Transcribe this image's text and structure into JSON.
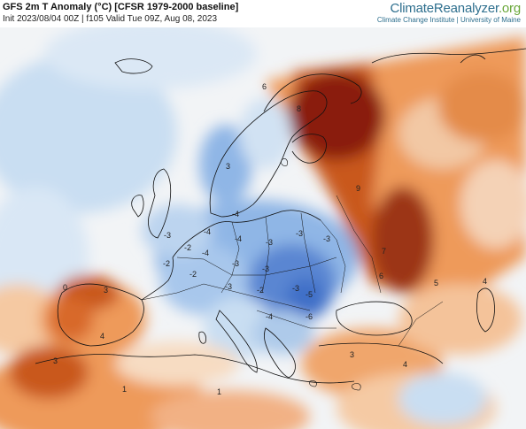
{
  "header": {
    "title": "GFS 2m T Anomaly (°C) [CFSR 1979-2000 baseline]",
    "subtitle": "Init 2023/08/04 00Z | f105 Valid Tue 09Z, Aug 08, 2023",
    "brand_name_main": "ClimateReanalyzer",
    "brand_name_tld": ".org",
    "brand_sub": "Climate Change Institute | University of Maine"
  },
  "colors": {
    "ocean_neutral": "#f2f4f6",
    "light_blue": "#c9def2",
    "mid_blue": "#8fb6e6",
    "deep_blue": "#3f70c8",
    "light_orange": "#f8d6b8",
    "orange": "#ee9a5a",
    "dark_orange": "#c9581e",
    "red_brown": "#8a1e0c",
    "border_line": "#111111"
  },
  "map": {
    "variable": "2m temperature anomaly",
    "region": "Europe",
    "contour_labels": [
      "6",
      "8",
      "9",
      "7",
      "3",
      "0",
      "4",
      "1",
      "3",
      "-4",
      "-4",
      "-3",
      "-4",
      "-3",
      "-3",
      "-3",
      "-4",
      "-2",
      "-2",
      "-2",
      "-3",
      "-3",
      "-3",
      "-2",
      "-3",
      "-4",
      "-5",
      "-6",
      "5",
      "6",
      "4",
      "3",
      "3",
      "1",
      "4"
    ]
  }
}
